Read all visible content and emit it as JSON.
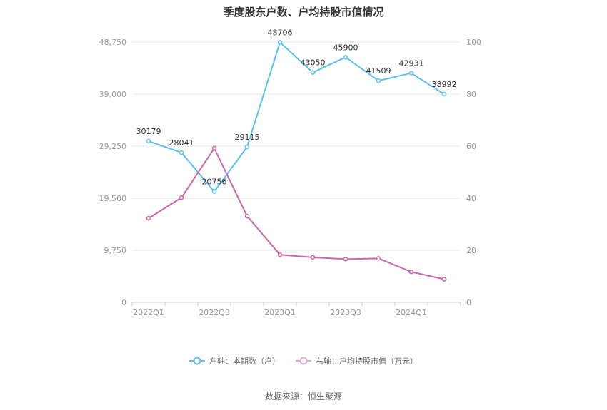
{
  "chart_data": {
    "type": "line",
    "title": "季度股东户数、户均持股市值情况",
    "categories": [
      "2022Q1",
      "2022Q2",
      "2022Q3",
      "2022Q4",
      "2023Q1",
      "2023Q2",
      "2023Q3",
      "2023Q4",
      "2024Q1",
      "2024Q2"
    ],
    "x_tick_labels": [
      "2022Q1",
      "",
      "2022Q3",
      "",
      "2023Q1",
      "",
      "2023Q3",
      "",
      "2024Q1",
      ""
    ],
    "left_axis": {
      "ylim": [
        0,
        48750
      ],
      "ticks": [
        "0",
        "9,750",
        "19,500",
        "29,250",
        "39,000",
        "48,750"
      ],
      "tick_values": [
        0,
        9750,
        19500,
        29250,
        39000,
        48750
      ]
    },
    "right_axis": {
      "ylim": [
        0,
        100
      ],
      "ticks": [
        "0",
        "20",
        "40",
        "60",
        "80",
        "100"
      ],
      "tick_values": [
        0,
        20,
        40,
        60,
        80,
        100
      ]
    },
    "series": [
      {
        "name": "左轴：本期数（户）",
        "axis": "left",
        "color": "#5bc0ee",
        "values": [
          30179,
          28041,
          20756,
          29115,
          48706,
          43050,
          45900,
          41509,
          42931,
          38992
        ],
        "labels": [
          "30179",
          "28041",
          "20756",
          "29115",
          "48706",
          "43050",
          "45900",
          "41509",
          "42931",
          "38992"
        ]
      },
      {
        "name": "右轴：户均持股市值（万元）",
        "axis": "right",
        "color": "#cc66aa",
        "values": [
          32.3,
          40.2,
          59.2,
          33.1,
          18.3,
          17.3,
          16.6,
          16.9,
          11.7,
          8.9
        ]
      }
    ],
    "grid": true,
    "legend_position": "bottom-center"
  },
  "source_text": "数据来源：恒生聚源"
}
